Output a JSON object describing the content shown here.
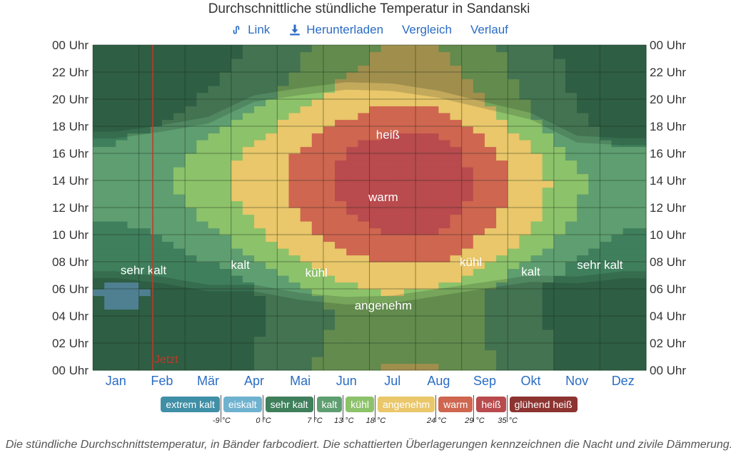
{
  "toolbar": {
    "link_label": "Link",
    "download_label": "Herunterladen",
    "compare_label": "Vergleich",
    "history_label": "Verlauf",
    "link_icon": "link-icon",
    "download_icon": "download-icon"
  },
  "chart_data": {
    "type": "heatmap",
    "title": "Durchschnittliche stündliche Temperatur in Sandanski",
    "x_categories": [
      "Jan",
      "Feb",
      "Mär",
      "Apr",
      "Mai",
      "Jun",
      "Jul",
      "Aug",
      "Sep",
      "Okt",
      "Nov",
      "Dez"
    ],
    "y_ticks": [
      "00 Uhr",
      "02 Uhr",
      "04 Uhr",
      "06 Uhr",
      "08 Uhr",
      "10 Uhr",
      "12 Uhr",
      "14 Uhr",
      "16 Uhr",
      "18 Uhr",
      "20 Uhr",
      "22 Uhr",
      "00 Uhr"
    ],
    "bands": [
      {
        "name": "extrem kalt",
        "color": "#3f8fa6"
      },
      {
        "name": "eiskalt",
        "color": "#6fb2cf"
      },
      {
        "name": "sehr kalt",
        "color": "#3f7f5c"
      },
      {
        "name": "kalt",
        "color": "#5e9e70"
      },
      {
        "name": "kühl",
        "color": "#8cc26a"
      },
      {
        "name": "angenehm",
        "color": "#e9c76a"
      },
      {
        "name": "warm",
        "color": "#cf6650"
      },
      {
        "name": "heiß",
        "color": "#b94a4d"
      },
      {
        "name": "glühend heiß",
        "color": "#8d3431"
      }
    ],
    "thresholds": [
      "-9 °C",
      "0 °C",
      "7 °C",
      "13 °C",
      "18 °C",
      "24 °C",
      "29 °C",
      "35 °C"
    ],
    "band_labels": [
      "sehr kalt",
      "kalt",
      "kühl",
      "angenehm",
      "warm",
      "heiß",
      "kühl",
      "kalt",
      "sehr kalt"
    ],
    "now_marker": {
      "label": "Jetzt",
      "month_position": 1.3
    },
    "caption": "Die stündliche Durchschnittstemperatur, in Bänder farbcodiert. Die schattierten Überlagerungen kennzeichnen die Nacht und zivile Dämmerung.",
    "hourly_temp_c": {
      "Jan": [
        1.0,
        0.8,
        0.5,
        0.2,
        0.0,
        -0.2,
        -0.3,
        0.0,
        1.5,
        3.5,
        5.5,
        7.0,
        8.2,
        9.0,
        9.4,
        9.3,
        8.4,
        6.6,
        5.0,
        4.0,
        3.0,
        2.3,
        1.7,
        1.2
      ],
      "Feb": [
        1.5,
        1.2,
        0.9,
        0.6,
        0.4,
        0.2,
        0.1,
        0.8,
        2.8,
        5.0,
        7.2,
        9.0,
        10.4,
        11.4,
        11.8,
        11.6,
        10.7,
        8.8,
        7.0,
        5.6,
        4.4,
        3.4,
        2.6,
        2.0
      ],
      "Mär": [
        4.0,
        3.5,
        3.0,
        2.6,
        2.3,
        2.1,
        2.5,
        4.5,
        7.0,
        9.5,
        11.7,
        13.5,
        14.8,
        15.6,
        16.0,
        15.8,
        15.0,
        13.3,
        11.0,
        9.3,
        7.9,
        6.7,
        5.6,
        4.7
      ],
      "Apr": [
        7.5,
        7.0,
        6.6,
        6.2,
        5.9,
        5.8,
        6.8,
        9.3,
        12.0,
        14.5,
        16.5,
        18.0,
        19.2,
        20.0,
        20.3,
        20.1,
        19.3,
        17.8,
        15.3,
        13.2,
        11.4,
        10.0,
        8.9,
        8.1
      ],
      "Mai": [
        12.0,
        11.4,
        10.9,
        10.5,
        10.2,
        10.6,
        12.4,
        15.0,
        17.8,
        20.2,
        22.0,
        23.4,
        24.5,
        25.2,
        25.5,
        25.3,
        24.5,
        23.0,
        20.8,
        18.6,
        16.6,
        15.0,
        13.7,
        12.8
      ],
      "Jun": [
        16.0,
        15.4,
        14.8,
        14.4,
        14.1,
        14.8,
        16.8,
        19.6,
        22.4,
        24.8,
        26.6,
        28.0,
        29.1,
        29.8,
        30.1,
        29.9,
        29.1,
        27.6,
        25.3,
        22.9,
        20.8,
        19.1,
        17.7,
        16.7
      ],
      "Jul": [
        18.5,
        17.8,
        17.2,
        16.7,
        16.4,
        16.8,
        18.8,
        21.8,
        24.8,
        27.4,
        29.4,
        30.9,
        32.0,
        32.8,
        33.1,
        32.9,
        32.1,
        30.6,
        28.2,
        25.6,
        23.4,
        21.6,
        20.2,
        19.2
      ],
      "Aug": [
        18.3,
        17.6,
        17.0,
        16.6,
        16.2,
        16.2,
        17.8,
        20.8,
        24.0,
        26.8,
        28.9,
        30.5,
        31.7,
        32.5,
        32.8,
        32.6,
        31.7,
        30.0,
        27.3,
        25.0,
        23.0,
        21.3,
        20.0,
        19.0
      ],
      "Sep": [
        14.5,
        13.9,
        13.4,
        13.0,
        12.7,
        12.5,
        13.2,
        15.8,
        19.0,
        21.8,
        23.9,
        25.4,
        26.5,
        27.2,
        27.5,
        27.2,
        26.2,
        24.0,
        21.5,
        19.6,
        18.0,
        16.7,
        15.7,
        14.9
      ],
      "Okt": [
        10.0,
        9.5,
        9.1,
        8.7,
        8.4,
        8.2,
        8.4,
        10.0,
        12.8,
        15.3,
        17.3,
        18.8,
        19.8,
        20.4,
        20.6,
        20.2,
        18.9,
        16.5,
        14.6,
        13.2,
        12.1,
        11.2,
        10.6,
        10.2
      ],
      "Nov": [
        5.0,
        4.7,
        4.4,
        4.1,
        3.9,
        3.7,
        3.7,
        4.6,
        6.5,
        8.7,
        10.6,
        12.1,
        13.1,
        13.7,
        13.8,
        13.3,
        11.6,
        9.6,
        8.3,
        7.3,
        6.5,
        5.9,
        5.4,
        5.1
      ],
      "Dez": [
        1.8,
        1.5,
        1.2,
        0.9,
        0.7,
        0.5,
        0.4,
        0.8,
        2.3,
        4.3,
        6.2,
        7.6,
        8.6,
        9.2,
        9.4,
        9.0,
        7.6,
        5.8,
        4.6,
        3.8,
        3.1,
        2.6,
        2.2,
        1.9
      ]
    },
    "sunrise_h": [
      7.3,
      6.9,
      6.3,
      6.3,
      5.7,
      5.4,
      5.5,
      6.0,
      6.5,
      7.0,
      6.9,
      7.3
    ],
    "sunset_h": [
      17.1,
      17.6,
      18.2,
      19.8,
      20.3,
      20.7,
      20.6,
      20.1,
      19.3,
      18.5,
      16.8,
      16.6
    ],
    "civil_twilight_min": [
      30,
      29,
      29,
      29,
      31,
      33,
      33,
      31,
      29,
      29,
      30,
      31
    ]
  }
}
